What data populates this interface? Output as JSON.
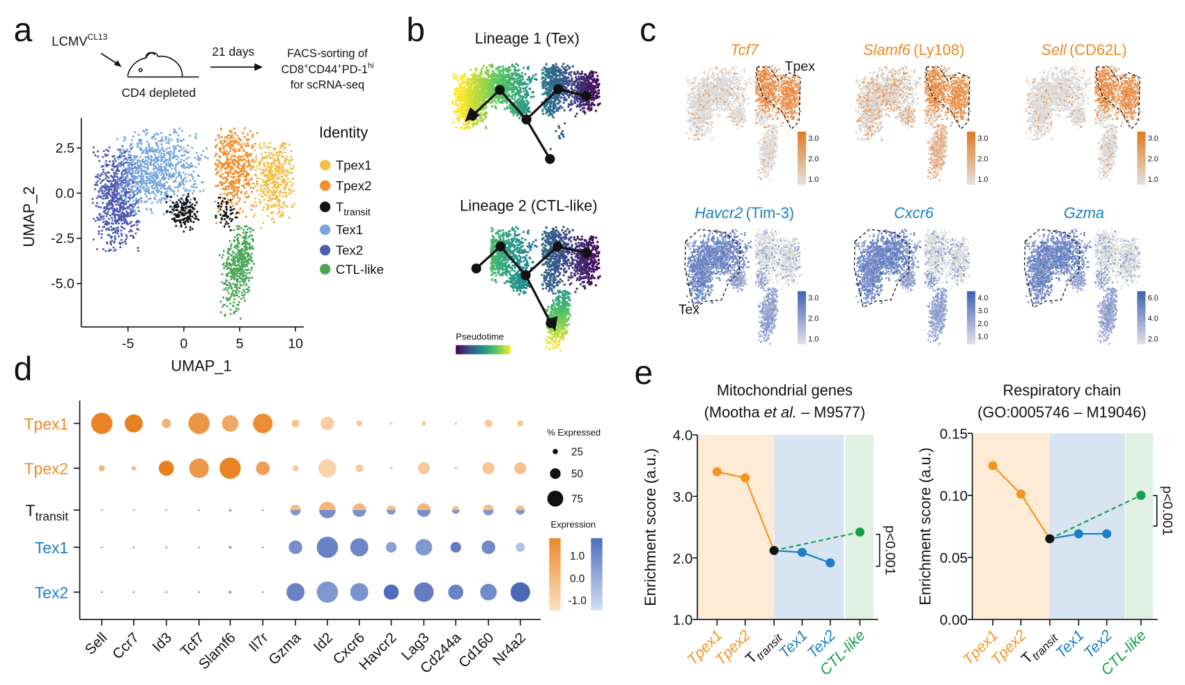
{
  "panel_labels": {
    "a": "a",
    "b": "b",
    "c": "c",
    "d": "d",
    "e": "e"
  },
  "panel_a": {
    "virus": "LCMV",
    "virus_sup": "CL13",
    "mouse_caption": "CD4 depleted",
    "duration": "21 days",
    "sorting_lines": [
      "FACS-sorting of",
      "CD8",
      "+",
      "CD44",
      "+",
      "PD-1",
      "hi",
      "for scRNA-seq"
    ],
    "umap": {
      "xlabel": "UMAP_1",
      "ylabel": "UMAP_2",
      "xticks": [
        "-5",
        "0",
        "5",
        "10"
      ],
      "xtick_values": [
        -5,
        0,
        5,
        10
      ],
      "yticks": [
        "2.5",
        "0.0",
        "-2.5",
        "-5.0"
      ],
      "ytick_values": [
        2.5,
        0,
        -2.5,
        -5
      ],
      "legend_title": "Identity",
      "legend": [
        {
          "label": "Tpex1",
          "color": "#f4bd45"
        },
        {
          "label": "Tpex2",
          "color": "#f28e2b"
        },
        {
          "label": "T",
          "sub": "transit",
          "color": "#111111"
        },
        {
          "label": "Tex1",
          "color": "#79a7dc"
        },
        {
          "label": "Tex2",
          "color": "#4f5bb0"
        },
        {
          "label": "CTL-like",
          "color": "#4aa657"
        }
      ]
    }
  },
  "panel_b": {
    "lineage1_title": "Lineage 1 (Tex)",
    "lineage2_title": "Lineage 2 (CTL-like)",
    "colorbar_label": "Pseudotime",
    "colormap": "viridis"
  },
  "panel_c": {
    "plots": [
      {
        "gene": "Tcf7",
        "alias": "",
        "color": "#f08a24",
        "scale": [
          "3.0",
          "2.0",
          "1.0"
        ]
      },
      {
        "gene": "Slamf6",
        "alias": "(Ly108)",
        "color": "#f08a24",
        "scale": [
          "3.0",
          "2.0",
          "1.0"
        ]
      },
      {
        "gene": "Sell",
        "alias": "(CD62L)",
        "color": "#f08a24",
        "scale": [
          "3.0",
          "2.0",
          "1.0"
        ]
      },
      {
        "gene": "Havcr2",
        "alias": "(Tim-3)",
        "color": "#1a7fc4",
        "scale": [
          "3.0",
          "2.0",
          "1.0"
        ]
      },
      {
        "gene": "Cxcr6",
        "alias": "",
        "color": "#1a7fc4",
        "scale": [
          "4.0",
          "3.0",
          "2.0",
          "1.0"
        ]
      },
      {
        "gene": "Gzma",
        "alias": "",
        "color": "#1a7fc4",
        "scale": [
          "6.0",
          "4.0",
          "2.0"
        ]
      }
    ],
    "region_top": "Tpex",
    "region_bottom": "Tex"
  },
  "chart_data": [
    {
      "type": "scatter",
      "panel": "d",
      "rows": [
        {
          "label": "Tpex1",
          "color": "#f08a24"
        },
        {
          "label": "Tpex2",
          "color": "#f08a24"
        },
        {
          "label": "T",
          "sub": "transit",
          "color": "#111111"
        },
        {
          "label": "Tex1",
          "color": "#1a7fc4"
        },
        {
          "label": "Tex2",
          "color": "#1a7fc4"
        }
      ],
      "genes": [
        "Sell",
        "Ccr7",
        "Id3",
        "Tcf7",
        "Slamf6",
        "Il7r",
        "Gzma",
        "Id2",
        "Cxcr6",
        "Havcr2",
        "Lag3",
        "Cd244a",
        "Cd160",
        "Nr4a2"
      ],
      "pct_expressed": [
        [
          100,
          85,
          43,
          100,
          78,
          92,
          36,
          64,
          28,
          14,
          21,
          14,
          36,
          28
        ],
        [
          28,
          21,
          71,
          92,
          100,
          64,
          28,
          85,
          36,
          14,
          57,
          14,
          57,
          57
        ],
        [
          7,
          5,
          5,
          10,
          14,
          10,
          50,
          78,
          64,
          43,
          64,
          36,
          50,
          43
        ],
        [
          5,
          5,
          5,
          5,
          14,
          7,
          64,
          100,
          85,
          50,
          78,
          50,
          64,
          43
        ],
        [
          5,
          5,
          5,
          5,
          14,
          5,
          85,
          100,
          85,
          71,
          92,
          71,
          78,
          92
        ]
      ],
      "avg_expression": [
        [
          1.4,
          1.5,
          0.0,
          0.9,
          0.3,
          1.1,
          -0.5,
          -0.8,
          -0.6,
          -0.8,
          -0.7,
          -0.9,
          -0.6,
          -0.5
        ],
        [
          0.0,
          -0.2,
          1.5,
          0.8,
          1.4,
          0.6,
          -0.6,
          -0.9,
          -0.6,
          -0.7,
          -0.6,
          -0.7,
          -0.5,
          -0.4
        ],
        [
          0.0,
          0.0,
          0.0,
          0.0,
          0.0,
          0.0,
          0.0,
          0.2,
          0.1,
          0.0,
          0.2,
          0.0,
          0.0,
          0.0
        ],
        [
          0.0,
          0.0,
          0.0,
          0.0,
          0.0,
          0.0,
          0.5,
          0.8,
          0.7,
          0.1,
          0.3,
          0.9,
          0.6,
          -0.7
        ],
        [
          0.0,
          0.0,
          0.0,
          0.0,
          0.0,
          0.0,
          0.8,
          0.3,
          0.4,
          1.3,
          0.9,
          0.8,
          0.6,
          1.4
        ]
      ],
      "size_legend_title": "% Expressed",
      "size_legend": [
        "25",
        "50",
        "75"
      ],
      "size_legend_values": [
        25,
        50,
        75
      ],
      "color_legend_title": "Expression",
      "color_legend_ticks": [
        "1.0",
        "0.0",
        "-1.0"
      ],
      "colors": {
        "tpex": "#e8801f",
        "tex": "#4a6cb8"
      }
    },
    {
      "type": "line",
      "panel": "e",
      "title": [
        "Mitochondrial genes",
        "(Mootha ",
        "et al.",
        " – M9577)"
      ],
      "ylabel": "Enrichment score (a.u.)",
      "ylim": [
        1.0,
        4.0
      ],
      "yticks": [
        "4.0",
        "3.0",
        "2.0",
        "1.0"
      ],
      "ytick_values": [
        4,
        3,
        2,
        1
      ],
      "categories": [
        "Tpex1",
        "Tpex2",
        "Ttransit",
        "Tex1",
        "Tex2",
        "CTL-like"
      ],
      "category_labels": [
        {
          "t": "Tpex1"
        },
        {
          "t": "Tpex2"
        },
        {
          "t": "T",
          "sub": "transit"
        },
        {
          "t": "Tex1"
        },
        {
          "t": "Tex2"
        },
        {
          "t": "CTL-like"
        }
      ],
      "values": [
        3.4,
        3.3,
        2.12,
        2.09,
        1.92,
        2.42
      ],
      "annotation": "p<0.001"
    },
    {
      "type": "line",
      "panel": "e",
      "title": [
        "Respiratory chain",
        "(GO:0005746 – M19046)"
      ],
      "ylabel": "Enrichment score (a.u.)",
      "ylim": [
        0.0,
        0.15
      ],
      "yticks": [
        "0.15",
        "0.10",
        "0.05",
        "0.00"
      ],
      "ytick_values": [
        0.15,
        0.1,
        0.05,
        0.0
      ],
      "categories": [
        "Tpex1",
        "Tpex2",
        "Ttransit",
        "Tex1",
        "Tex2",
        "CTL-like"
      ],
      "category_labels": [
        {
          "t": "Tpex1"
        },
        {
          "t": "Tpex2"
        },
        {
          "t": "T",
          "sub": "transit"
        },
        {
          "t": "Tex1"
        },
        {
          "t": "Tex2"
        },
        {
          "t": "CTL-like"
        }
      ],
      "values": [
        0.124,
        0.101,
        0.065,
        0.069,
        0.069,
        0.1
      ],
      "annotation": "p<0.001"
    }
  ],
  "group_colors": {
    "tpex": "#f7941d",
    "ttransit": "#111111",
    "tex": "#1a7fc4",
    "ctl": "#16a04a",
    "band_tpex": "#fdebd5",
    "band_tex": "#d8e4f2",
    "band_ctl": "#e0f0e3"
  }
}
